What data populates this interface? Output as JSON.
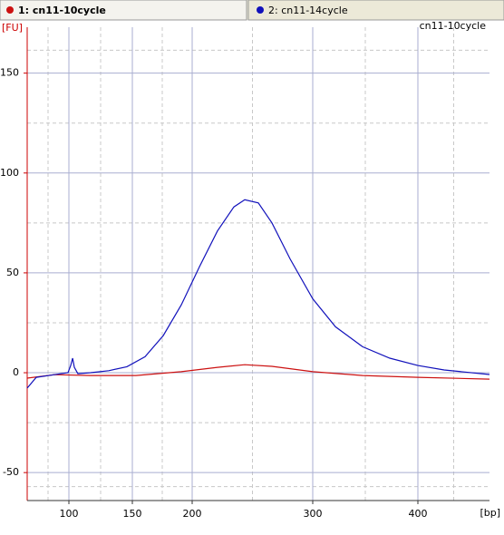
{
  "chart_data": {
    "type": "line",
    "title": "cn11-10cycle",
    "y_label": "[FU]",
    "x_label": "[bp]",
    "xlim": [
      67,
      468
    ],
    "xticks": [
      100,
      150,
      200,
      300,
      400
    ],
    "ylim": [
      -64,
      173
    ],
    "yticks": [
      -50,
      0,
      50,
      100,
      150
    ],
    "grid": true,
    "series": [
      {
        "name": "1: cn11-10cycle",
        "color": "#cc1111",
        "x": [
          67,
          88.5,
          117.1,
          153,
          190.9,
          221,
          243.6,
          266.2,
          300,
          347.4,
          400,
          468
        ],
        "values": [
          -2.7,
          -1,
          -1.4,
          -1.4,
          0.5,
          2.7,
          4,
          3.2,
          0.5,
          -1.4,
          -2.3,
          -3.2
        ]
      },
      {
        "name": "2: cn11-14cycle",
        "color": "#1111bb",
        "x": [
          67,
          74.2,
          88.5,
          99.3,
          101.4,
          102.9,
          104.3,
          107.1,
          117.1,
          131.4,
          145.7,
          160.6,
          175.8,
          190.9,
          206,
          221,
          234.6,
          243.6,
          254.9,
          266.2,
          281.2,
          300,
          321.6,
          347.4,
          373.3,
          400,
          425,
          468
        ],
        "values": [
          -7.7,
          -2.3,
          -1,
          0,
          3.6,
          7.3,
          2.7,
          -0.5,
          0,
          1,
          3,
          8,
          18.6,
          34,
          53,
          71,
          83,
          86.6,
          85,
          75,
          57,
          37,
          23,
          13,
          7.3,
          3.6,
          1.4,
          -0.9
        ]
      }
    ]
  }
}
